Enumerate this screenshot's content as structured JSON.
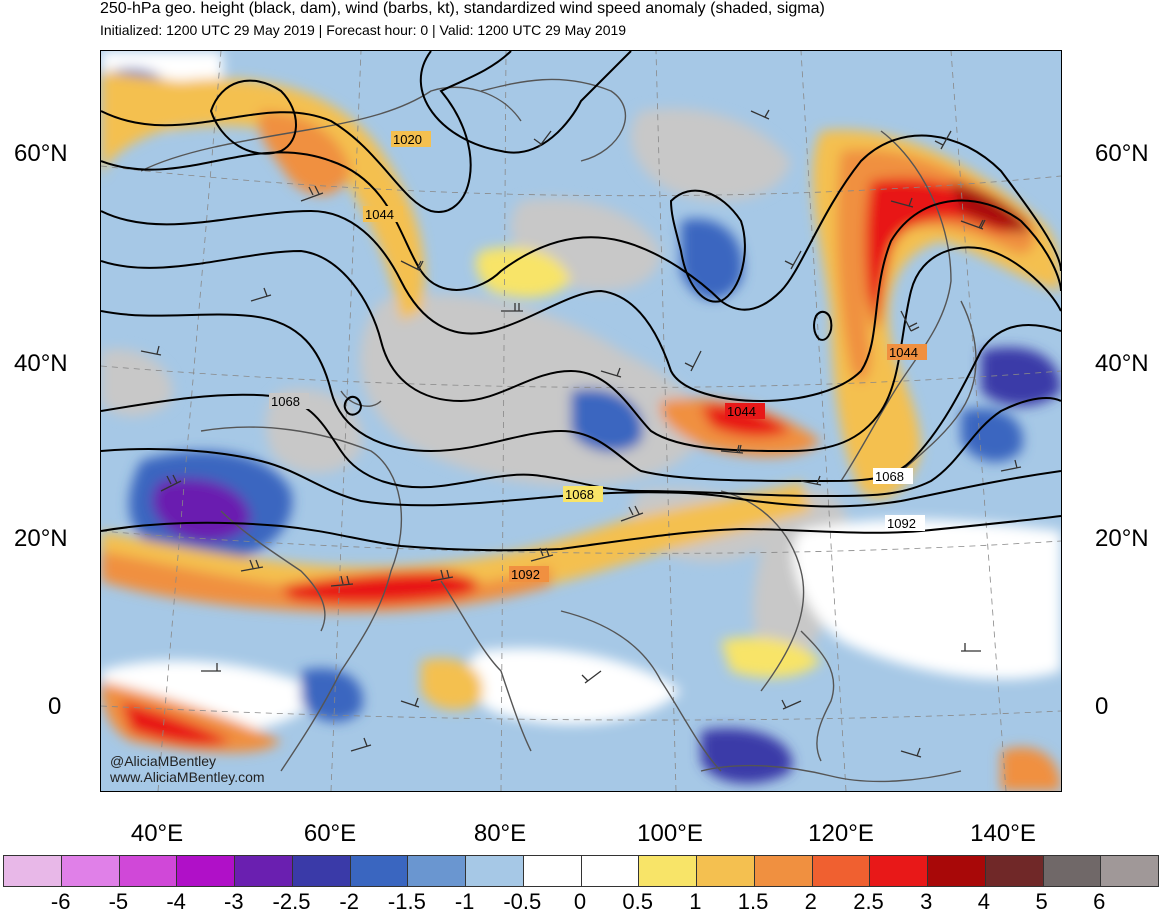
{
  "title": "250-hPa geo. height (black, dam), wind (barbs, kt), standardized wind speed anomaly (shaded, sigma)",
  "subtitle": "Initialized: 1200 UTC 29 May 2019 | Forecast hour: 0 | Valid: 1200 UTC 29 May 2019",
  "lat_labels": [
    "60°N",
    "40°N",
    "20°N",
    "0"
  ],
  "lon_labels": [
    "40°E",
    "60°E",
    "80°E",
    "100°E",
    "120°E",
    "140°E"
  ],
  "contour_labels": [
    "1020",
    "1044",
    "1068",
    "1044",
    "1044",
    "1068",
    "1068",
    "1092",
    "1092"
  ],
  "credit_handle": "@AliciaMBentley",
  "credit_site": "www.AliciaMBentley.com",
  "colorbar": {
    "ticks": [
      "-6",
      "-5",
      "-4",
      "-3",
      "-2.5",
      "-2",
      "-1.5",
      "-1",
      "-0.5",
      "0",
      "0.5",
      "1",
      "1.5",
      "2",
      "2.5",
      "3",
      "4",
      "5",
      "6"
    ],
    "colors": [
      "#e8b8e8",
      "#e080e8",
      "#d048d8",
      "#b010c8",
      "#6a1fb0",
      "#3a3aa8",
      "#3a66c0",
      "#6a96d0",
      "#a6c8e6",
      "#ffffff",
      "#ffffff",
      "#f8e468",
      "#f4c050",
      "#f09040",
      "#f06030",
      "#e81818",
      "#a80808",
      "#702828",
      "#706868",
      "#a09898"
    ]
  }
}
